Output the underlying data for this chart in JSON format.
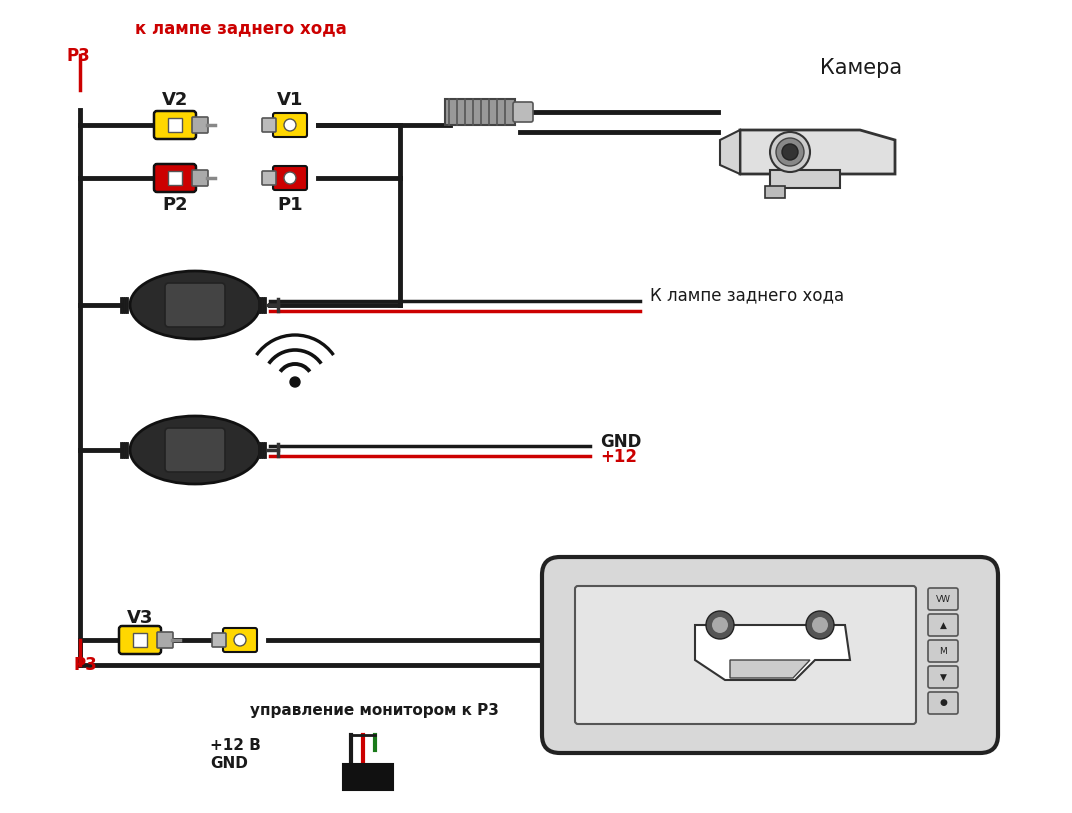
{
  "bg_color": "#ffffff",
  "text_top_label": "к лампе заднего хода",
  "text_p3_top": "P3",
  "text_v2": "V2",
  "text_v1": "V1",
  "text_p2": "P2",
  "text_p1": "P1",
  "text_camera": "Камера",
  "text_k_lampe": "К лампе заднего хода",
  "text_gnd": "GND",
  "text_plus12": "+12",
  "text_v3": "V3",
  "text_p3_bot": "P3",
  "text_upravlenie": "управление монитором к P3",
  "text_plus12v": "+12 В",
  "text_gnd_bot": "GND",
  "yellow_color": "#FFD700",
  "red_color": "#CC0000",
  "black_color": "#1a1a1a",
  "gray_color": "#777777",
  "light_gray": "#cccccc",
  "dark_gray": "#333333",
  "med_gray": "#555555",
  "wire_black": "#1a1a1a",
  "wire_red": "#CC0000",
  "wire_green": "#1a7a1a",
  "figsize": [
    10.72,
    8.13
  ],
  "dpi": 100
}
